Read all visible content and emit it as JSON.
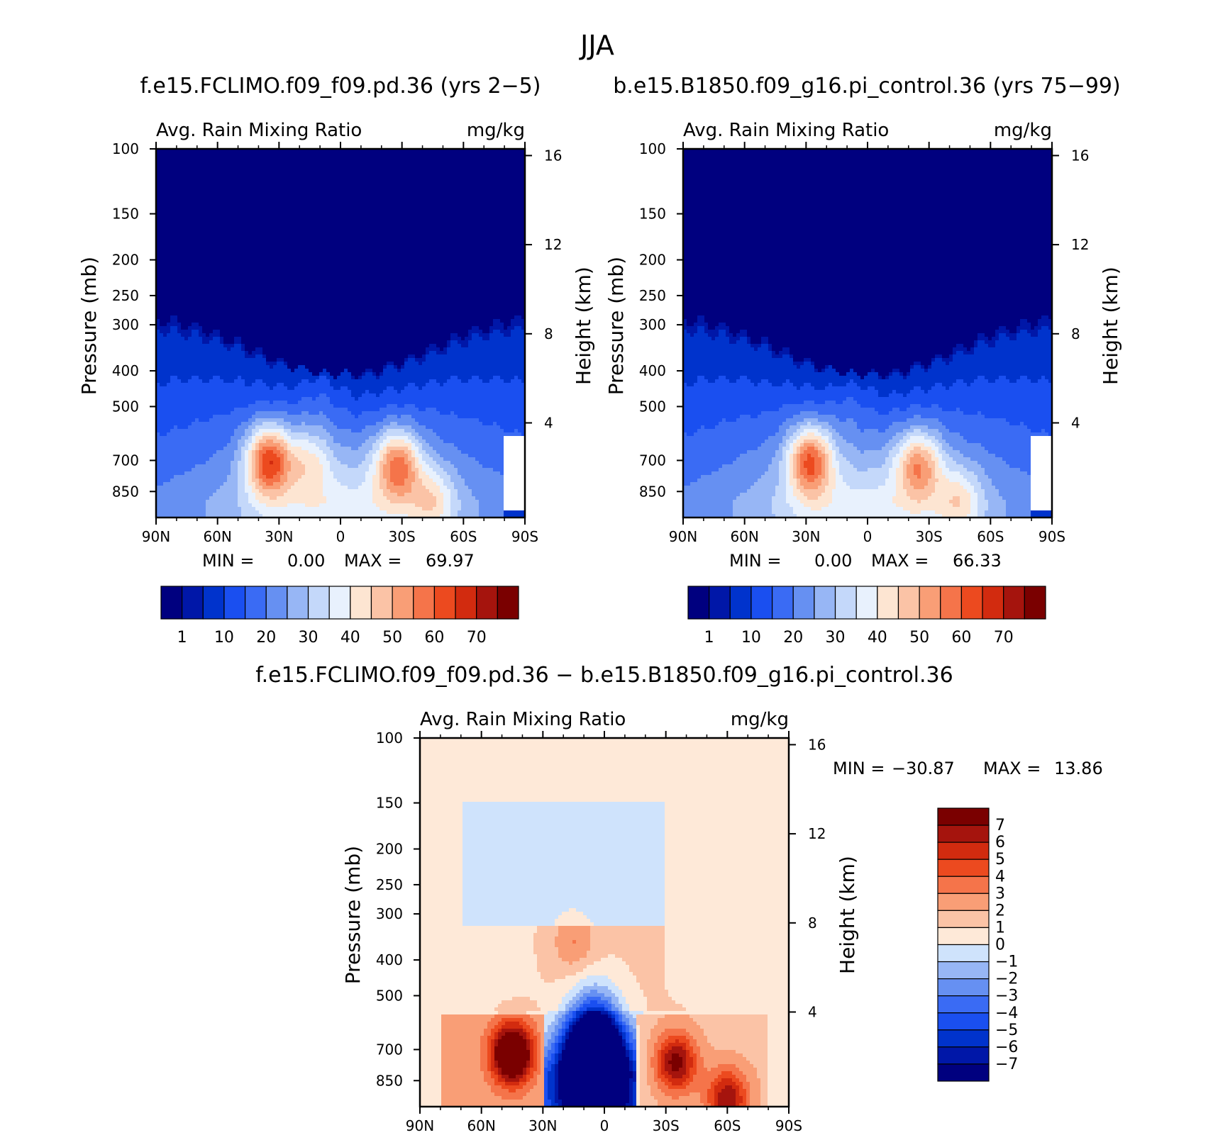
{
  "figure_title": "JJA",
  "chart_data": [
    {
      "id": "panel-a",
      "type": "heatmap",
      "title": "f.e15.FCLIMO.f09_f09.pd.36 (yrs 2-5)",
      "left_label": "Avg. Rain Mixing Ratio",
      "right_label": "mg/kg",
      "ylabel": "Pressure (mb)",
      "ylabel_right": "Height (km)",
      "x_ticks": [
        "90N",
        "60N",
        "30N",
        "0",
        "30S",
        "60S",
        "90S"
      ],
      "y_ticks": [
        "100",
        "150",
        "200",
        "250",
        "300",
        "400",
        "500",
        "700",
        "850"
      ],
      "y_ticks_right": [
        "16",
        "12",
        "8",
        "4"
      ],
      "ylim": [
        100,
        1000
      ],
      "min_label": "MIN =",
      "min_value": "0.00",
      "max_label": "MAX =",
      "max_value": "69.97",
      "levels": [
        1,
        5,
        10,
        15,
        20,
        25,
        30,
        35,
        40,
        45,
        50,
        55,
        60,
        65,
        70
      ],
      "colorbar_labels": [
        "1",
        "10",
        "20",
        "30",
        "40",
        "50",
        "60",
        "70"
      ],
      "features": [
        {
          "lat": 35,
          "p": 700,
          "value": 69.97
        },
        {
          "lat": 15,
          "p": 700,
          "value": 45
        },
        {
          "lat": -28,
          "p": 720,
          "value": 62
        },
        {
          "lat": 10,
          "p": 450,
          "value": 35
        },
        {
          "lat": -45,
          "p": 900,
          "value": 45
        }
      ]
    },
    {
      "id": "panel-b",
      "type": "heatmap",
      "title": "b.e15.B1850.f09_g16.pi_control.36 (yrs 75-99)",
      "left_label": "Avg. Rain Mixing Ratio",
      "right_label": "mg/kg",
      "ylabel": "Pressure (mb)",
      "ylabel_right": "Height (km)",
      "x_ticks": [
        "90N",
        "60N",
        "30N",
        "0",
        "30S",
        "60S",
        "90S"
      ],
      "y_ticks": [
        "100",
        "150",
        "200",
        "250",
        "300",
        "400",
        "500",
        "700",
        "850"
      ],
      "y_ticks_right": [
        "16",
        "12",
        "8",
        "4"
      ],
      "ylim": [
        100,
        1000
      ],
      "min_label": "MIN =",
      "min_value": "0.00",
      "max_label": "MAX =",
      "max_value": "66.33",
      "levels": [
        1,
        5,
        10,
        15,
        20,
        25,
        30,
        35,
        40,
        45,
        50,
        55,
        60,
        65,
        70
      ],
      "colorbar_labels": [
        "1",
        "10",
        "20",
        "30",
        "40",
        "50",
        "60",
        "70"
      ],
      "features": [
        {
          "lat": 28,
          "p": 700,
          "value": 66.33
        },
        {
          "lat": -25,
          "p": 720,
          "value": 58
        },
        {
          "lat": 8,
          "p": 480,
          "value": 34
        },
        {
          "lat": -45,
          "p": 900,
          "value": 45
        }
      ]
    },
    {
      "id": "panel-c",
      "type": "heatmap",
      "title": "f.e15.FCLIMO.f09_f09.pd.36 - b.e15.B1850.f09_g16.pi_control.36",
      "left_label": "Avg. Rain Mixing Ratio",
      "right_label": "mg/kg",
      "ylabel": "Pressure (mb)",
      "ylabel_right": "Height (km)",
      "x_ticks": [
        "90N",
        "60N",
        "30N",
        "0",
        "30S",
        "60S",
        "90S"
      ],
      "y_ticks": [
        "100",
        "150",
        "200",
        "250",
        "300",
        "400",
        "500",
        "700",
        "850"
      ],
      "y_ticks_right": [
        "16",
        "12",
        "8",
        "4"
      ],
      "ylim": [
        100,
        1000
      ],
      "min_label": "MIN =",
      "min_value": "-30.87",
      "max_label": "MAX =",
      "max_value": "13.86",
      "levels": [
        -7,
        -6,
        -5,
        -4,
        -3,
        -2,
        -1,
        0,
        1,
        2,
        3,
        4,
        5,
        6,
        7
      ],
      "colorbar_labels": [
        "7",
        "6",
        "5",
        "4",
        "3",
        "2",
        "1",
        "0",
        "-1",
        "-2",
        "-3",
        "-4",
        "-5",
        "-6",
        "-7"
      ],
      "features": [
        {
          "lat": 45,
          "p": 720,
          "value": 13.86
        },
        {
          "lat": 5,
          "p": 780,
          "value": -30.87
        },
        {
          "lat": -35,
          "p": 760,
          "value": 9
        },
        {
          "lat": 15,
          "p": 360,
          "value": 3
        },
        {
          "lat": -60,
          "p": 950,
          "value": 8
        }
      ]
    }
  ],
  "colors": {
    "sequential": [
      "#00007f",
      "#0017a8",
      "#0033cc",
      "#1a4ff0",
      "#3a6bf4",
      "#6690f2",
      "#97b6f5",
      "#c4d8fa",
      "#e8f1fd",
      "#fde5d2",
      "#fbc3a6",
      "#f99e76",
      "#f5744a",
      "#ec4a1f",
      "#d22b0f",
      "#a5140d",
      "#7a0000"
    ],
    "diverging": [
      "#00007f",
      "#0017a8",
      "#0033cc",
      "#1a4ff0",
      "#3a6bf4",
      "#6690f2",
      "#97b6f5",
      "#cfe3fc",
      "#fee9d8",
      "#fbc3a6",
      "#f99e76",
      "#f5744a",
      "#ec4a1f",
      "#d22b0f",
      "#a5140d",
      "#7a0000"
    ]
  }
}
